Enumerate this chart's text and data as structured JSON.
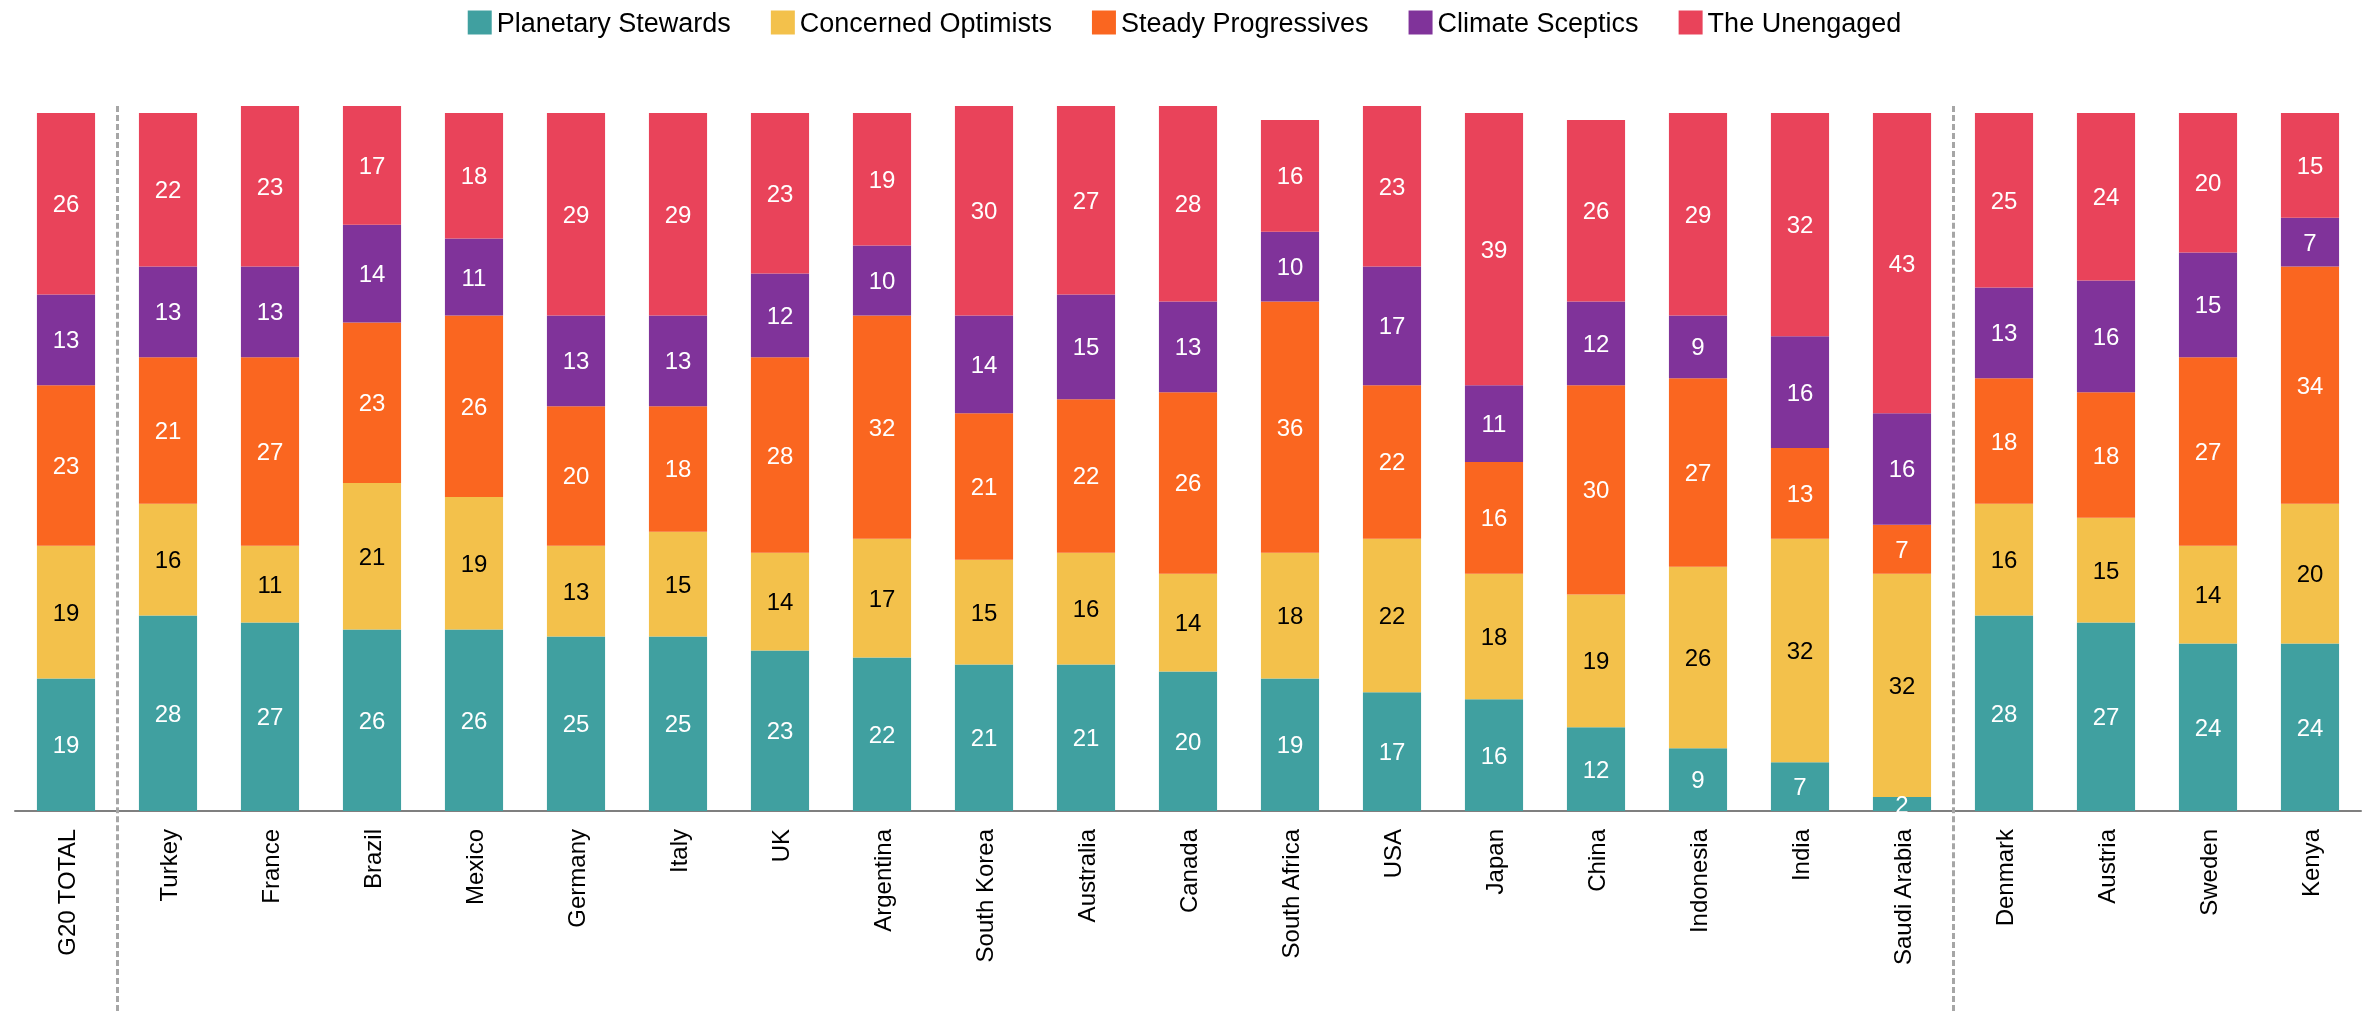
{
  "chart_data": {
    "type": "bar",
    "stacked": true,
    "data_labels": true,
    "legend": "top",
    "categories": [
      "G20 TOTAL",
      "Turkey",
      "France",
      "Brazil",
      "Mexico",
      "Germany",
      "Italy",
      "UK",
      "Argentina",
      "South Korea",
      "Australia",
      "Canada",
      "South Africa",
      "USA",
      "Japan",
      "China",
      "Indonesia",
      "India",
      "Saudi Arabia",
      "Denmark",
      "Austria",
      "Sweden",
      "Kenya"
    ],
    "series": [
      {
        "name": "Planetary Stewards",
        "color": "#40a0a0",
        "values": [
          19,
          28,
          27,
          26,
          26,
          25,
          25,
          23,
          22,
          21,
          21,
          20,
          19,
          17,
          16,
          12,
          9,
          7,
          2,
          28,
          27,
          24,
          24
        ]
      },
      {
        "name": "Concerned Optimists",
        "color": "#f3c14b",
        "values": [
          19,
          16,
          11,
          21,
          19,
          13,
          15,
          14,
          17,
          15,
          16,
          14,
          18,
          22,
          18,
          19,
          26,
          32,
          32,
          16,
          15,
          14,
          20
        ]
      },
      {
        "name": "Steady Progressives",
        "color": "#fa6620",
        "values": [
          23,
          21,
          27,
          23,
          26,
          20,
          18,
          28,
          32,
          21,
          22,
          26,
          36,
          22,
          16,
          30,
          27,
          13,
          7,
          18,
          18,
          27,
          34
        ]
      },
      {
        "name": "Climate Sceptics",
        "color": "#80339a",
        "values": [
          13,
          13,
          13,
          14,
          11,
          13,
          13,
          12,
          10,
          14,
          15,
          13,
          10,
          17,
          11,
          12,
          9,
          16,
          16,
          13,
          16,
          15,
          7
        ]
      },
      {
        "name": "The Unengaged",
        "color": "#e9435a",
        "values": [
          26,
          22,
          23,
          17,
          18,
          29,
          29,
          23,
          19,
          30,
          27,
          28,
          16,
          23,
          39,
          26,
          29,
          32,
          43,
          25,
          24,
          20,
          15
        ]
      }
    ]
  }
}
